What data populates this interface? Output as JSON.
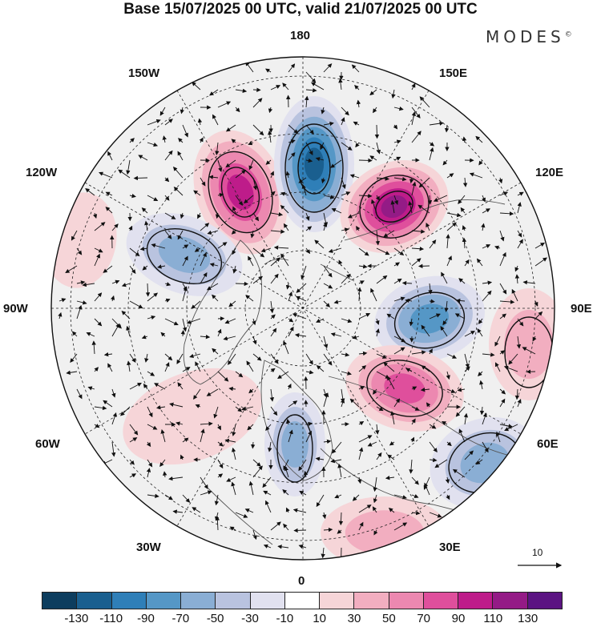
{
  "header": {
    "title": "Base 15/07/2025 00 UTC, valid 21/07/2025 00 UTC",
    "brand": "MODES",
    "brand_mark": "©"
  },
  "map": {
    "projection": "north-polar-stereographic",
    "longitude_labels": [
      "180",
      "150E",
      "120E",
      "90E",
      "60E",
      "30E",
      "0",
      "30W",
      "60W",
      "90W",
      "120W",
      "150W"
    ],
    "anomalies": [
      {
        "name": "positive-1",
        "value": 100
      },
      {
        "name": "negative-1",
        "value": -120
      },
      {
        "name": "positive-2",
        "value": 120
      },
      {
        "name": "negative-2",
        "value": -70
      },
      {
        "name": "negative-3",
        "value": -90
      },
      {
        "name": "positive-3",
        "value": 90
      },
      {
        "name": "positive-4",
        "value": 50
      },
      {
        "name": "negative-4",
        "value": -70
      },
      {
        "name": "negative-5",
        "value": -70
      },
      {
        "name": "positive-5",
        "value": 50
      },
      {
        "name": "positive-6",
        "value": 30
      },
      {
        "name": "positive-7",
        "value": 20
      }
    ]
  },
  "vector_scale": {
    "label": "10"
  },
  "legend": {
    "ticks": [
      "-130",
      "-110",
      "-90",
      "-70",
      "-50",
      "-30",
      "-10",
      "10",
      "30",
      "50",
      "70",
      "90",
      "110",
      "130"
    ],
    "colors": [
      "#0d3d5e",
      "#1a5f8f",
      "#2f7fb8",
      "#5597c6",
      "#8aaed4",
      "#b9c3df",
      "#e1e1ef",
      "#ffffff",
      "#f6d5d8",
      "#f2aec0",
      "#ec88b0",
      "#df4f9c",
      "#be1c8a",
      "#941b86",
      "#5b1482"
    ]
  }
}
